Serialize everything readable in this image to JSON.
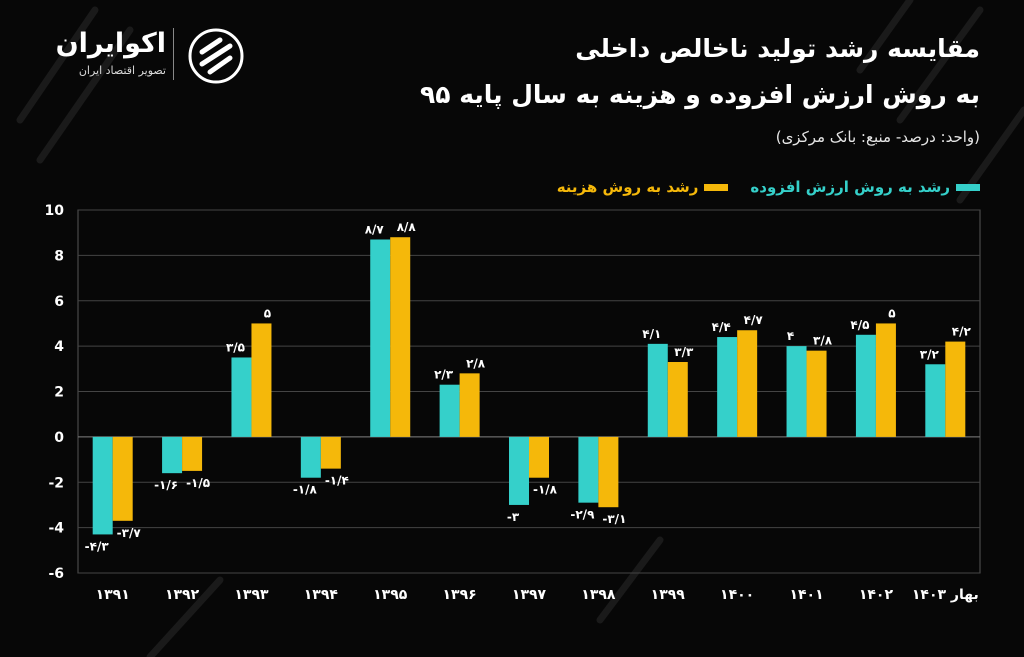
{
  "brand": {
    "name": "اکوایران",
    "tagline": "تصویر اقتصاد ایران"
  },
  "header": {
    "title_line1": "مقایسه رشد تولید ناخالص داخلی",
    "title_line2": "به روش ارزش افزوده و هزینه به سال پایه ۹۵",
    "subtitle": "(واحد: درصد- منبع: بانک مرکزی)"
  },
  "colors": {
    "background": "#070707",
    "series_value_added": "#35d0ca",
    "series_expenditure": "#f5b80a",
    "grid": "#444444",
    "text": "#ffffff"
  },
  "chart_data": {
    "type": "bar",
    "categories": [
      "۱۳۹۱",
      "۱۳۹۲",
      "۱۳۹۳",
      "۱۳۹۴",
      "۱۳۹۵",
      "۱۳۹۶",
      "۱۳۹۷",
      "۱۳۹۸",
      "۱۳۹۹",
      "۱۴۰۰",
      "۱۴۰۱",
      "۱۴۰۲",
      "بهار ۱۴۰۳"
    ],
    "series": [
      {
        "name": "رشد به روش ارزش افزوده",
        "color": "#35d0ca",
        "values": [
          -4.3,
          -1.6,
          3.5,
          -1.8,
          8.7,
          2.3,
          -3,
          -2.9,
          4.1,
          4.4,
          4,
          4.5,
          3.2
        ],
        "labels": [
          "-۴/۳",
          "-۱/۶",
          "۳/۵",
          "-۱/۸",
          "۸/۷",
          "۲/۳",
          "-۳",
          "-۲/۹",
          "۴/۱",
          "۴/۴",
          "۴",
          "۴/۵",
          "۳/۲"
        ]
      },
      {
        "name": "رشد به روش هزینه",
        "color": "#f5b80a",
        "values": [
          -3.7,
          -1.5,
          5,
          -1.4,
          8.8,
          2.8,
          -1.8,
          -3.1,
          3.3,
          4.7,
          3.8,
          5,
          4.2
        ],
        "labels": [
          "-۳/۷",
          "-۱/۵",
          "۵",
          "-۱/۴",
          "۸/۸",
          "۲/۸",
          "-۱/۸",
          "-۳/۱",
          "۳/۳",
          "۴/۷",
          "۳/۸",
          "۵",
          "۴/۲"
        ]
      }
    ],
    "ylim": [
      -6,
      10
    ],
    "yticks": [
      10,
      8,
      6,
      4,
      2,
      0,
      -2,
      -4,
      -6
    ],
    "ytick_labels": [
      "10",
      "8",
      "6",
      "4",
      "2",
      "0",
      "-2",
      "-4",
      "-6"
    ],
    "grid": true,
    "legend_position": "top-right"
  }
}
